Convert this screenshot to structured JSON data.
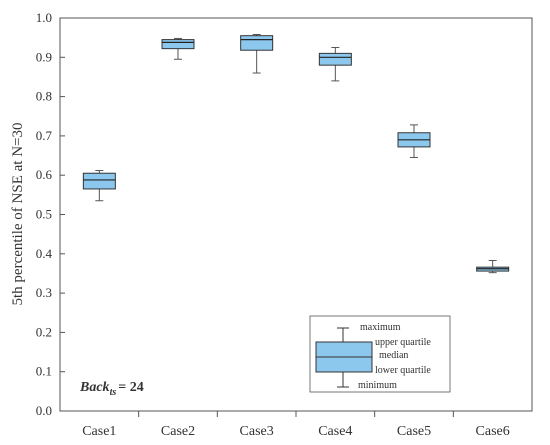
{
  "chart_data": {
    "type": "box",
    "ylabel": "5th percentile  of NSE at N=30",
    "ylim": [
      0.0,
      1.0
    ],
    "yticks": [
      "0.0",
      "0.1",
      "0.2",
      "0.3",
      "0.4",
      "0.5",
      "0.6",
      "0.7",
      "0.8",
      "0.9",
      "1.0"
    ],
    "ytick_values": [
      0.0,
      0.1,
      0.2,
      0.3,
      0.4,
      0.5,
      0.6,
      0.7,
      0.8,
      0.9,
      1.0
    ],
    "categories": [
      "Case1",
      "Case2",
      "Case3",
      "Case4",
      "Case5",
      "Case6"
    ],
    "boxes": [
      {
        "min": 0.535,
        "q1": 0.565,
        "median": 0.588,
        "q3": 0.605,
        "max": 0.612
      },
      {
        "min": 0.895,
        "q1": 0.922,
        "median": 0.938,
        "q3": 0.945,
        "max": 0.948
      },
      {
        "min": 0.86,
        "q1": 0.918,
        "median": 0.945,
        "q3": 0.955,
        "max": 0.958
      },
      {
        "min": 0.84,
        "q1": 0.88,
        "median": 0.9,
        "q3": 0.91,
        "max": 0.925
      },
      {
        "min": 0.645,
        "q1": 0.672,
        "median": 0.69,
        "q3": 0.708,
        "max": 0.728
      },
      {
        "min": 0.352,
        "q1": 0.356,
        "median": 0.362,
        "q3": 0.366,
        "max": 0.383
      }
    ],
    "box_color": "#8cc8ee",
    "grid": false,
    "annotation": {
      "main": "Back",
      "subscript": "ts",
      "suffix": "= 24"
    },
    "legend": {
      "placement": "bottom-right",
      "labels": {
        "maximum": "maximum",
        "upper_quartile": "upper quartile",
        "median": "median",
        "lower_quartile": "lower quartile",
        "minimum": "minimum"
      }
    }
  }
}
